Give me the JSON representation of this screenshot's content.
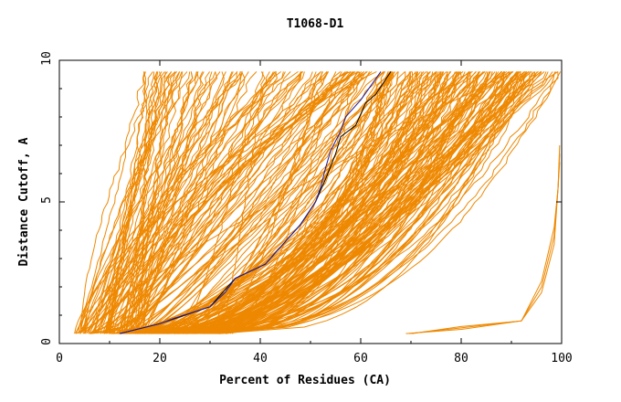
{
  "chart_data": {
    "type": "line",
    "title": "T1068-D1",
    "xlabel": "Percent of Residues (CA)",
    "ylabel": "Distance Cutoff, A",
    "xlim": [
      0,
      100
    ],
    "ylim": [
      0,
      10
    ],
    "x_ticks": [
      {
        "value": 0,
        "label": "0"
      },
      {
        "value": 20,
        "label": "20"
      },
      {
        "value": 40,
        "label": "40"
      },
      {
        "value": 60,
        "label": "60"
      },
      {
        "value": 80,
        "label": "80"
      },
      {
        "value": 100,
        "label": "100"
      }
    ],
    "y_ticks": [
      {
        "value": 0,
        "label": "0"
      },
      {
        "value": 5,
        "label": "5"
      },
      {
        "value": 10,
        "label": "10"
      }
    ],
    "grid": false,
    "legend": "none",
    "colors": {
      "models": "#ee8800",
      "highlight_blue": "#1a1aa0",
      "highlight_black": "#000000"
    },
    "highlighted_series": [
      {
        "color": "#000000",
        "points": [
          [
            12,
            0.35
          ],
          [
            20,
            0.7
          ],
          [
            30,
            1.3
          ],
          [
            35,
            2.3
          ],
          [
            41,
            2.8
          ],
          [
            44,
            3.4
          ],
          [
            48,
            4.2
          ],
          [
            51,
            5.0
          ],
          [
            53,
            5.8
          ],
          [
            55,
            6.7
          ],
          [
            56,
            7.3
          ],
          [
            59,
            7.7
          ],
          [
            61,
            8.5
          ],
          [
            63,
            8.8
          ],
          [
            66,
            9.6
          ]
        ]
      },
      {
        "color": "#1a1aa0",
        "points": [
          [
            12,
            0.35
          ],
          [
            20,
            0.7
          ],
          [
            23,
            0.9
          ],
          [
            30,
            1.3
          ],
          [
            33,
            1.8
          ],
          [
            35,
            2.3
          ],
          [
            41,
            2.8
          ],
          [
            44,
            3.4
          ],
          [
            48,
            4.2
          ],
          [
            51,
            5.0
          ],
          [
            52,
            5.5
          ],
          [
            53,
            6.2
          ],
          [
            54,
            6.8
          ],
          [
            56,
            7.5
          ],
          [
            57,
            8.0
          ],
          [
            60,
            8.6
          ],
          [
            62,
            9.1
          ],
          [
            64,
            9.6
          ]
        ]
      }
    ]
  }
}
